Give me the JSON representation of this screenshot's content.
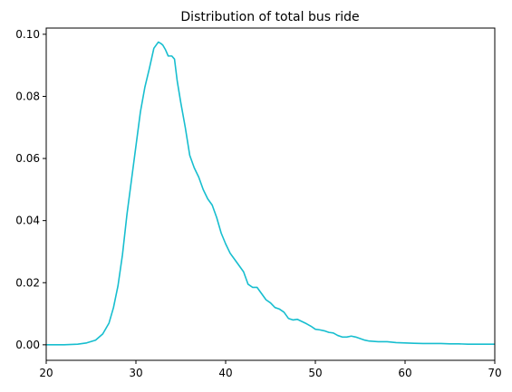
{
  "chart_data": {
    "type": "line",
    "title": "Distribution of total bus ride",
    "xlabel": "",
    "ylabel": "",
    "xlim": [
      20,
      70
    ],
    "ylim": [
      -0.005,
      0.102
    ],
    "x_ticks": [
      20,
      30,
      40,
      50,
      60,
      70
    ],
    "y_ticks": [
      0.0,
      0.02,
      0.04,
      0.06,
      0.08,
      0.1
    ],
    "x_tick_labels": [
      "20",
      "30",
      "40",
      "50",
      "60",
      "70"
    ],
    "y_tick_labels": [
      "0.00",
      "0.02",
      "0.04",
      "0.06",
      "0.08",
      "0.10"
    ],
    "grid": false,
    "line_color": "#17becf",
    "series": [
      {
        "x": [
          20,
          22,
          23.5,
          24.5,
          25.5,
          26.3,
          27,
          27.5,
          28,
          28.5,
          29,
          29.5,
          30,
          30.5,
          31,
          31.5,
          32,
          32.5,
          32.8,
          33,
          33.3,
          33.6,
          34,
          34.3,
          34.6,
          35,
          35.5,
          36,
          36.5,
          37,
          37.5,
          38,
          38.5,
          39,
          39.5,
          40,
          40.5,
          41,
          41.5,
          42,
          42.5,
          43,
          43.5,
          44,
          44.5,
          45,
          45.5,
          46,
          46.5,
          47,
          47.5,
          48,
          48.5,
          49,
          49.5,
          50,
          50.5,
          51,
          51.5,
          52,
          52.5,
          53,
          53.5,
          54,
          54.5,
          55,
          55.5,
          56,
          57,
          58,
          59,
          60,
          61,
          62,
          63,
          64,
          65,
          66,
          67,
          68,
          69,
          70
        ],
        "y": [
          0.0,
          0.0,
          0.0002,
          0.0006,
          0.0015,
          0.0035,
          0.007,
          0.012,
          0.019,
          0.029,
          0.042,
          0.053,
          0.064,
          0.075,
          0.083,
          0.089,
          0.0955,
          0.0975,
          0.097,
          0.0965,
          0.095,
          0.093,
          0.093,
          0.092,
          0.085,
          0.078,
          0.07,
          0.061,
          0.057,
          0.054,
          0.05,
          0.047,
          0.045,
          0.041,
          0.036,
          0.0325,
          0.0295,
          0.0275,
          0.0255,
          0.0235,
          0.0195,
          0.0185,
          0.0185,
          0.0165,
          0.0145,
          0.0135,
          0.012,
          0.0115,
          0.0105,
          0.0085,
          0.008,
          0.0082,
          0.0075,
          0.0068,
          0.006,
          0.005,
          0.0048,
          0.0045,
          0.004,
          0.0038,
          0.003,
          0.0025,
          0.0025,
          0.0028,
          0.0025,
          0.002,
          0.0015,
          0.0012,
          0.001,
          0.001,
          0.0007,
          0.0006,
          0.0005,
          0.0004,
          0.0004,
          0.0004,
          0.0003,
          0.0003,
          0.0002,
          0.0002,
          0.0002,
          0.0002
        ]
      }
    ]
  }
}
